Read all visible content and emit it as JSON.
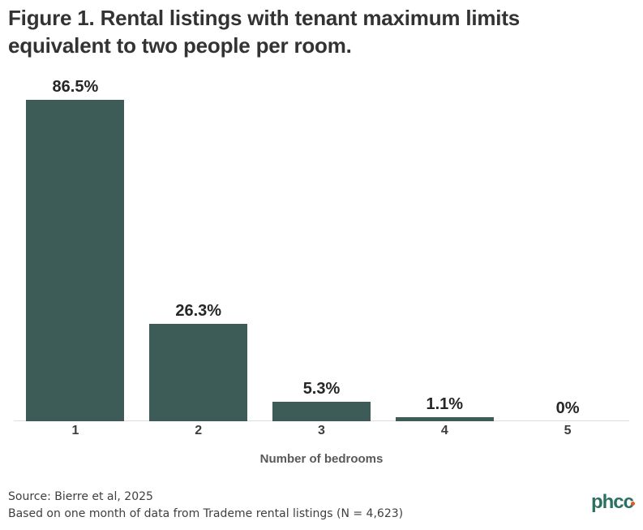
{
  "figure": {
    "title_lines": [
      "Figure 1. Rental listings with tenant maximum limits",
      "equivalent to two people per room."
    ],
    "footer": {
      "line1": "Source: Bierre et al, 2025",
      "line2": "Based on one month of data from Trademe rental listings (N = 4,623)"
    },
    "logo": {
      "text": "phcc"
    }
  },
  "chart_data": {
    "type": "bar",
    "title": "Figure 1. Rental listings with tenant maximum limits equivalent to two people per room.",
    "categories": [
      "1",
      "2",
      "3",
      "4",
      "5"
    ],
    "values": [
      86.5,
      26.3,
      5.3,
      1.1,
      0
    ],
    "value_labels": [
      "86.5%",
      "26.3%",
      "5.3%",
      "1.1%",
      "0%"
    ],
    "xlabel": "Number of bedrooms",
    "ylabel": "",
    "ylim": [
      0,
      90
    ],
    "grid": false,
    "legend": false,
    "bar_color": "#3d5b57"
  },
  "colors": {
    "bar": "#3d5b57",
    "title_text": "#333333",
    "value_label_text": "#262626",
    "tick_text": "#3d3d3d",
    "axis_label_text": "#595959",
    "footer_text": "#3f3f3f",
    "axis_line": "#dedede",
    "logo_teal": "#2c7062",
    "logo_dot_orange": "#e4572e"
  }
}
